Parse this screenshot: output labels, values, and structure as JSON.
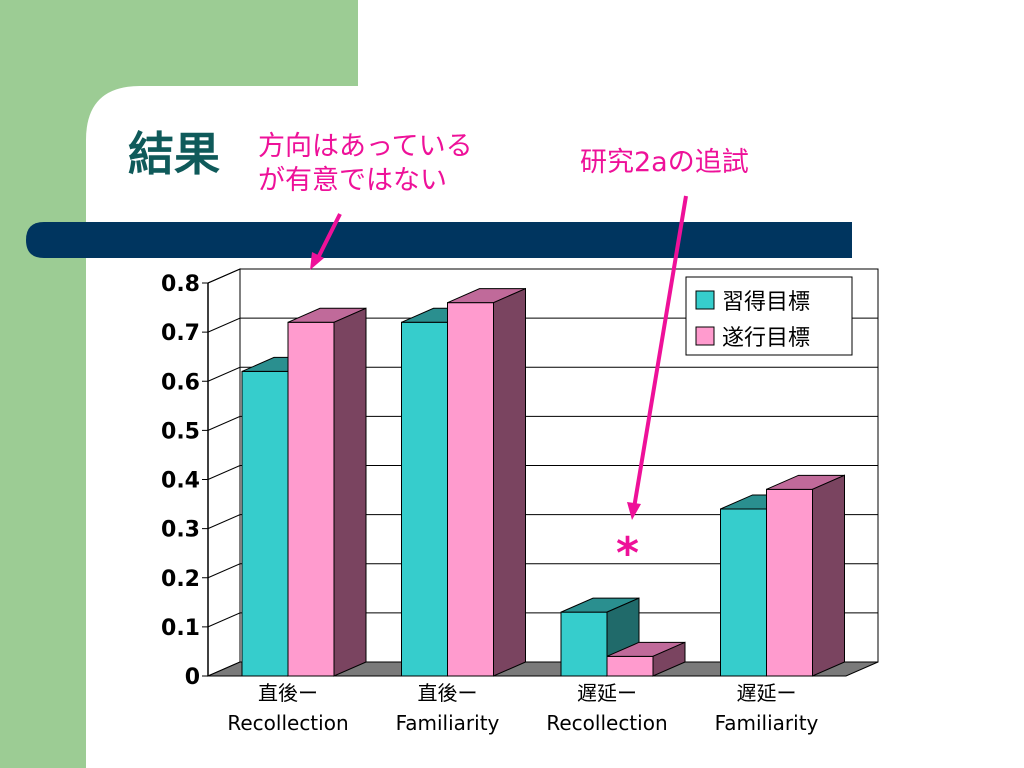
{
  "slide": {
    "title": "結果",
    "annotations": [
      {
        "id": "note1",
        "text": "方向はあっている\nが有意ではない"
      },
      {
        "id": "note2",
        "text": "研究2aの追試"
      }
    ],
    "significance_mark": "*"
  },
  "colors": {
    "left_panel": "#9ccc94",
    "bar_band": "#00355f",
    "annotation": "#ee1199",
    "series1_front": "#36cdcc",
    "series1_top": "#2a8f8f",
    "series1_side": "#206a6a",
    "series2_front": "#ff9bce",
    "series2_top": "#c06a9a",
    "series2_side": "#7a4460",
    "floor": "#7a7a7a"
  },
  "chart_data": {
    "type": "bar",
    "categories": [
      [
        "直後ー",
        "Recollection"
      ],
      [
        "直後ー",
        "Familiarity"
      ],
      [
        "遅延ー",
        "Recollection"
      ],
      [
        "遅延ー",
        "Familiarity"
      ]
    ],
    "series": [
      {
        "name": "習得目標",
        "values": [
          0.62,
          0.72,
          0.13,
          0.34
        ]
      },
      {
        "name": "遂行目標",
        "values": [
          0.72,
          0.76,
          0.04,
          0.38
        ]
      }
    ],
    "ylim": [
      0,
      0.8
    ],
    "yticks": [
      "0",
      "0.1",
      "0.2",
      "0.3",
      "0.4",
      "0.5",
      "0.6",
      "0.7",
      "0.8"
    ],
    "grid": true,
    "legend_position": "top-right"
  }
}
